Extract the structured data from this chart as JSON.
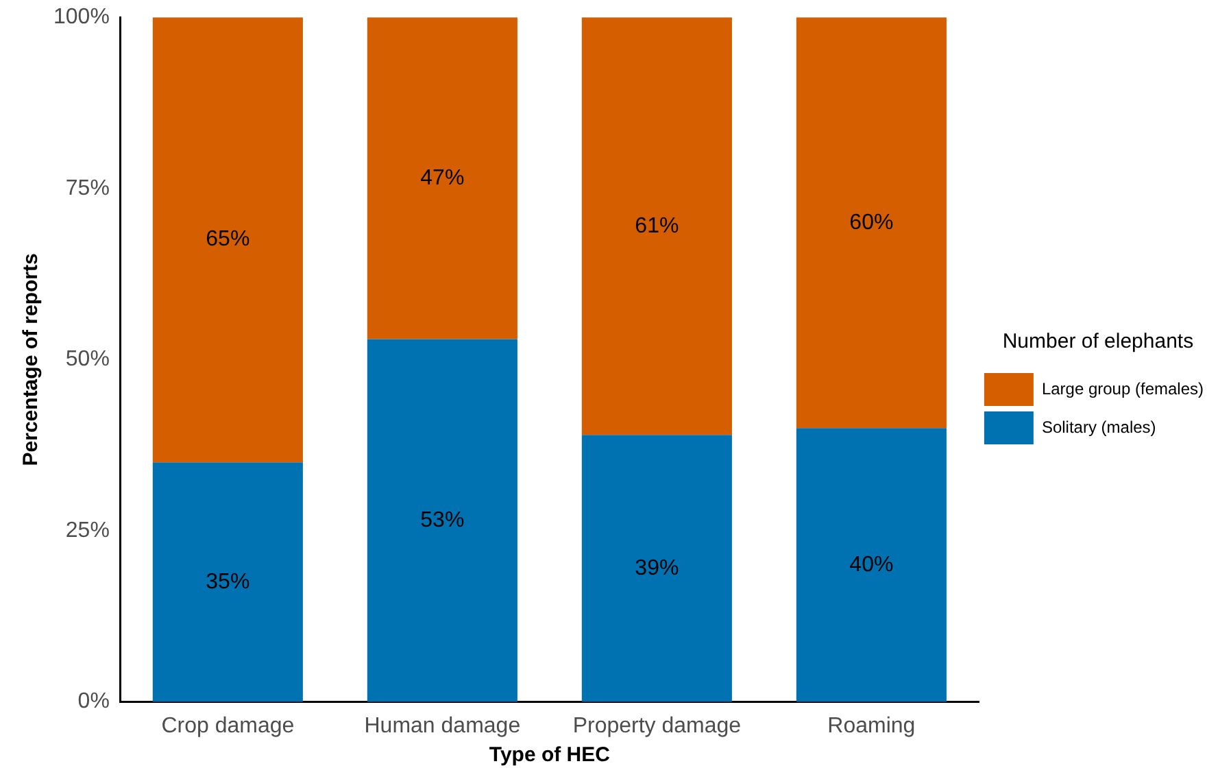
{
  "chart_data": {
    "type": "bar",
    "stacked": true,
    "xlabel": "Type of HEC",
    "ylabel": "Percentage of reports",
    "legend_title": "Number of elephants",
    "legend": "right",
    "categories": [
      "Crop damage",
      "Human damage",
      "Property damage",
      "Roaming"
    ],
    "ylim": [
      0,
      100
    ],
    "yticks": [
      {
        "value": 0,
        "label": "0%"
      },
      {
        "value": 25,
        "label": "25%"
      },
      {
        "value": 50,
        "label": "50%"
      },
      {
        "value": 75,
        "label": "75%"
      },
      {
        "value": 100,
        "label": "100%"
      }
    ],
    "grid": false,
    "series": [
      {
        "name": "Solitary (males)",
        "color": "#0072b2",
        "values": [
          35,
          53,
          39,
          40
        ],
        "value_labels": [
          "35%",
          "53%",
          "39%",
          "40%"
        ]
      },
      {
        "name": "Large group (females)",
        "color": "#d55e00",
        "values": [
          65,
          47,
          61,
          60
        ],
        "value_labels": [
          "65%",
          "47%",
          "61%",
          "60%"
        ]
      }
    ]
  }
}
